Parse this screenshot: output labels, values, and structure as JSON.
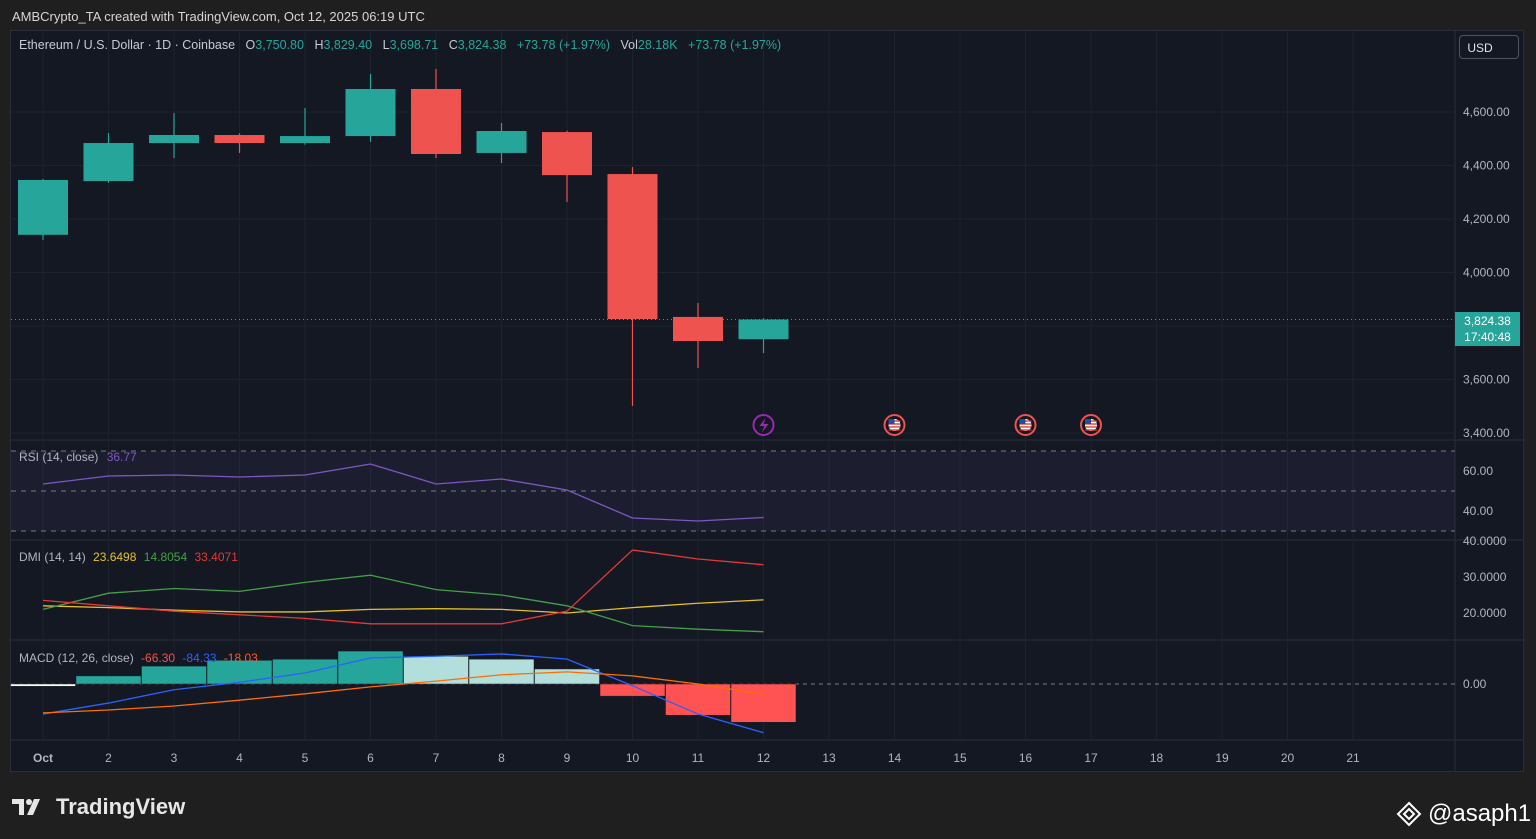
{
  "credit": "AMBCrypto_TA created with TradingView.com, Oct 12, 2025 06:19 UTC",
  "legend": {
    "symbol": "Ethereum / U.S. Dollar · 1D · Coinbase",
    "open_label": "O",
    "open": "3,750.80",
    "high_label": "H",
    "high": "3,829.40",
    "low_label": "L",
    "low": "3,698.71",
    "close_label": "C",
    "close": "3,824.38",
    "change": "+73.78 (+1.97%)",
    "vol_label": "Vol",
    "vol": "28.18K",
    "vol_change": "+73.78 (+1.97%)"
  },
  "currency_button": "USD",
  "last_price": {
    "price": "3,824.38",
    "countdown": "17:40:48"
  },
  "colors": {
    "up": "#26a69a",
    "down": "#ef5350",
    "rsi": "#7e57c2",
    "adx": "#e4c12b",
    "plus_di": "#43a047",
    "minus_di": "#e53935",
    "macd": "#2962ff",
    "signal": "#ff6d00",
    "background": "#141823"
  },
  "events": [
    {
      "date": "12",
      "icon": "lightning-icon"
    },
    {
      "date": "14",
      "icon": "us-flag-icon"
    },
    {
      "date": "16",
      "icon": "us-flag-icon"
    },
    {
      "date": "17",
      "icon": "us-flag-icon"
    }
  ],
  "chart_data": [
    {
      "type": "candlestick",
      "title": "Ethereum / U.S. Dollar · 1D · Coinbase",
      "x": [
        "Oct",
        "2",
        "3",
        "4",
        "5",
        "6",
        "7",
        "8",
        "9",
        "10",
        "11",
        "12"
      ],
      "open": [
        4141,
        4342,
        4484,
        4514,
        4484,
        4510,
        4686,
        4447,
        4525,
        4368,
        3834,
        3750.8
      ],
      "high": [
        4350,
        4521,
        4596,
        4520,
        4615,
        4742,
        4761,
        4559,
        4530,
        4394,
        3886,
        3829.4
      ],
      "low": [
        4122,
        4335,
        4428,
        4447,
        4478,
        4488,
        4428,
        4409,
        4264,
        3501,
        3643,
        3698.71
      ],
      "close": [
        4346,
        4484,
        4514,
        4484,
        4510,
        4686,
        4443,
        4529,
        4364,
        3826,
        3744,
        3824.38
      ],
      "ylim": [
        3400,
        4800
      ],
      "y_ticks": [
        "4,600.00",
        "4,400.00",
        "4,200.00",
        "4,000.00",
        "3,800.00",
        "3,600.00",
        "3,400.00"
      ],
      "x_ticks": [
        "Oct",
        "2",
        "3",
        "4",
        "5",
        "6",
        "7",
        "8",
        "9",
        "10",
        "11",
        "12",
        "13",
        "14",
        "15",
        "16",
        "17",
        "18",
        "19",
        "20",
        "21"
      ]
    },
    {
      "type": "line",
      "title": "RSI (14, close)",
      "value_label": "36.77",
      "series": [
        {
          "values": [
            53.5,
            57.5,
            58,
            57,
            58,
            63.5,
            53.5,
            56,
            50.5,
            36.5,
            35,
            36.77
          ]
        }
      ],
      "bands": [
        70,
        50,
        30
      ],
      "y_ticks": [
        "60.00",
        "40.00"
      ]
    },
    {
      "type": "line",
      "title": "DMI (14, 14)",
      "value_labels": [
        "23.6498",
        "14.8054",
        "33.4071"
      ],
      "series": [
        {
          "values": [
            22,
            21.5,
            20.8,
            20.3,
            20.3,
            21,
            21.2,
            21,
            20,
            21.5,
            22.7,
            23.6498
          ]
        },
        {
          "values": [
            21,
            25.5,
            26.8,
            26,
            28.5,
            30.5,
            26.5,
            25,
            22,
            16.5,
            15.5,
            14.8054
          ]
        },
        {
          "values": [
            23.5,
            22,
            20.5,
            19.5,
            18.5,
            17,
            17,
            17,
            20.5,
            37.5,
            35,
            33.4071
          ]
        }
      ],
      "y_ticks": [
        "40.0000",
        "30.0000",
        "20.0000"
      ]
    },
    {
      "type": "bar+line",
      "title": "MACD (12, 26, close)",
      "value_labels": [
        "-66.30",
        "-84.33",
        "-18.03"
      ],
      "histogram": [
        -4,
        14,
        31,
        41,
        43,
        57,
        48,
        43,
        26,
        -21,
        -54,
        -66.3
      ],
      "series": [
        {
          "values": [
            -52,
            -33,
            -10,
            3,
            19,
            45,
            48,
            52,
            43,
            -3,
            -52,
            -84.33
          ]
        },
        {
          "values": [
            -50,
            -45,
            -38,
            -28,
            -17,
            -5,
            5,
            16,
            21,
            14,
            0,
            -18.03
          ]
        }
      ],
      "y_ticks": [
        "0.00"
      ]
    }
  ],
  "footer": {
    "brand": "TradingView",
    "handle": "@asaph1"
  }
}
